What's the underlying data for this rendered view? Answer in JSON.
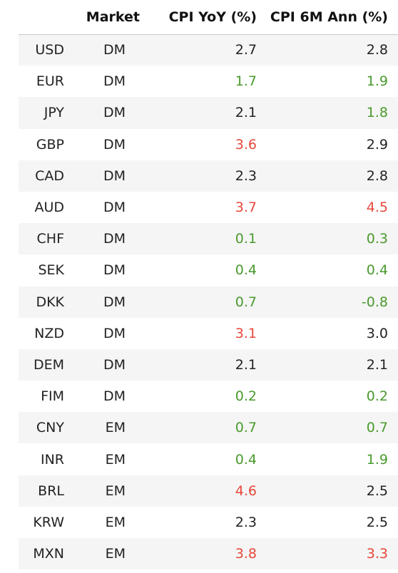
{
  "columns": [
    "",
    "Market",
    "CPI YoY (%)",
    "CPI 6M Ann (%)"
  ],
  "colors": {
    "positive": "#4a9a2e",
    "negative": "#e8473a",
    "neutral": "#222222",
    "row_stripe": "#f5f5f5"
  },
  "rows": [
    {
      "ccy": "USD",
      "market": "DM",
      "yoy": "2.7",
      "yoy_color": "neutral",
      "ann": "2.8",
      "ann_color": "neutral"
    },
    {
      "ccy": "EUR",
      "market": "DM",
      "yoy": "1.7",
      "yoy_color": "green",
      "ann": "1.9",
      "ann_color": "green"
    },
    {
      "ccy": "JPY",
      "market": "DM",
      "yoy": "2.1",
      "yoy_color": "neutral",
      "ann": "1.8",
      "ann_color": "green"
    },
    {
      "ccy": "GBP",
      "market": "DM",
      "yoy": "3.6",
      "yoy_color": "red",
      "ann": "2.9",
      "ann_color": "neutral"
    },
    {
      "ccy": "CAD",
      "market": "DM",
      "yoy": "2.3",
      "yoy_color": "neutral",
      "ann": "2.8",
      "ann_color": "neutral"
    },
    {
      "ccy": "AUD",
      "market": "DM",
      "yoy": "3.7",
      "yoy_color": "red",
      "ann": "4.5",
      "ann_color": "red"
    },
    {
      "ccy": "CHF",
      "market": "DM",
      "yoy": "0.1",
      "yoy_color": "green",
      "ann": "0.3",
      "ann_color": "green"
    },
    {
      "ccy": "SEK",
      "market": "DM",
      "yoy": "0.4",
      "yoy_color": "green",
      "ann": "0.4",
      "ann_color": "green"
    },
    {
      "ccy": "DKK",
      "market": "DM",
      "yoy": "0.7",
      "yoy_color": "green",
      "ann": "-0.8",
      "ann_color": "green"
    },
    {
      "ccy": "NZD",
      "market": "DM",
      "yoy": "3.1",
      "yoy_color": "red",
      "ann": "3.0",
      "ann_color": "neutral"
    },
    {
      "ccy": "DEM",
      "market": "DM",
      "yoy": "2.1",
      "yoy_color": "neutral",
      "ann": "2.1",
      "ann_color": "neutral"
    },
    {
      "ccy": "FIM",
      "market": "DM",
      "yoy": "0.2",
      "yoy_color": "green",
      "ann": "0.2",
      "ann_color": "green"
    },
    {
      "ccy": "CNY",
      "market": "EM",
      "yoy": "0.7",
      "yoy_color": "green",
      "ann": "0.7",
      "ann_color": "green"
    },
    {
      "ccy": "INR",
      "market": "EM",
      "yoy": "0.4",
      "yoy_color": "green",
      "ann": "1.9",
      "ann_color": "green"
    },
    {
      "ccy": "BRL",
      "market": "EM",
      "yoy": "4.6",
      "yoy_color": "red",
      "ann": "2.5",
      "ann_color": "neutral"
    },
    {
      "ccy": "KRW",
      "market": "EM",
      "yoy": "2.3",
      "yoy_color": "neutral",
      "ann": "2.5",
      "ann_color": "neutral"
    },
    {
      "ccy": "MXN",
      "market": "EM",
      "yoy": "3.8",
      "yoy_color": "red",
      "ann": "3.3",
      "ann_color": "red"
    }
  ]
}
